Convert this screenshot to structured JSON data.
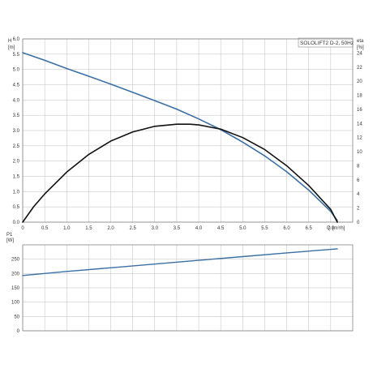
{
  "chart_data": [
    {
      "type": "line",
      "title": "SOLOLIFT2 D-2, 50Hz",
      "xlabel": "Q [m³/h]",
      "ylabel": "H [m]",
      "y2label": "eta [%]",
      "ylabel_name": "H",
      "ylabel_unit": "[m]",
      "y2label_name": "eta",
      "y2label_unit": "[%]",
      "xlabel_name": "Q",
      "xlabel_unit": "[m³/h]",
      "xlim": [
        0,
        7.5
      ],
      "ylim": [
        0,
        6.0
      ],
      "y2lim": [
        0,
        26
      ],
      "xticks": [
        "0",
        "0.5",
        "1.0",
        "1.5",
        "2.0",
        "2.5",
        "3.0",
        "3.5",
        "4.0",
        "4.5",
        "5.0",
        "5.5",
        "6.0",
        "6.5",
        "7.0"
      ],
      "yticks": [
        "0.0",
        "0.5",
        "1.0",
        "1.5",
        "2.0",
        "2.5",
        "3.0",
        "3.5",
        "4.0",
        "4.5",
        "5.0",
        "5.5",
        "6.0"
      ],
      "y2ticks": [
        "0",
        "2",
        "4",
        "6",
        "8",
        "10",
        "12",
        "14",
        "16",
        "18",
        "20",
        "22",
        "24"
      ],
      "grid": true,
      "series": [
        {
          "axis": "left",
          "color": "#3b6fa5",
          "x": [
            0,
            0.5,
            1.0,
            1.5,
            2.0,
            2.5,
            3.0,
            3.5,
            4.0,
            4.5,
            5.0,
            5.5,
            6.0,
            6.5,
            7.0,
            7.15
          ],
          "y": [
            5.55,
            5.3,
            5.03,
            4.78,
            4.52,
            4.25,
            3.98,
            3.7,
            3.38,
            3.03,
            2.62,
            2.17,
            1.65,
            1.05,
            0.35,
            0.05
          ]
        },
        {
          "axis": "right",
          "color": "#111111",
          "x": [
            0,
            0.25,
            0.5,
            1.0,
            1.5,
            2.0,
            2.5,
            3.0,
            3.5,
            3.8,
            4.0,
            4.5,
            5.0,
            5.5,
            6.0,
            6.5,
            7.0,
            7.15
          ],
          "y": [
            0,
            2.2,
            4.0,
            7.1,
            9.6,
            11.5,
            12.8,
            13.6,
            13.9,
            13.9,
            13.8,
            13.2,
            12.0,
            10.3,
            8.0,
            5.2,
            1.8,
            0
          ]
        }
      ]
    },
    {
      "type": "line",
      "ylabel": "P1 [W]",
      "ylabel_name": "P1",
      "ylabel_unit": "[W]",
      "xlim": [
        0,
        7.5
      ],
      "ylim": [
        0,
        300
      ],
      "yticks": [
        "0",
        "50",
        "100",
        "150",
        "200",
        "250"
      ],
      "grid": true,
      "series": [
        {
          "color": "#3b6fa5",
          "x": [
            0,
            1.0,
            2.0,
            3.0,
            4.0,
            5.0,
            6.0,
            7.15
          ],
          "y": [
            193,
            207,
            220,
            233,
            246,
            259,
            272,
            286
          ]
        }
      ]
    }
  ]
}
